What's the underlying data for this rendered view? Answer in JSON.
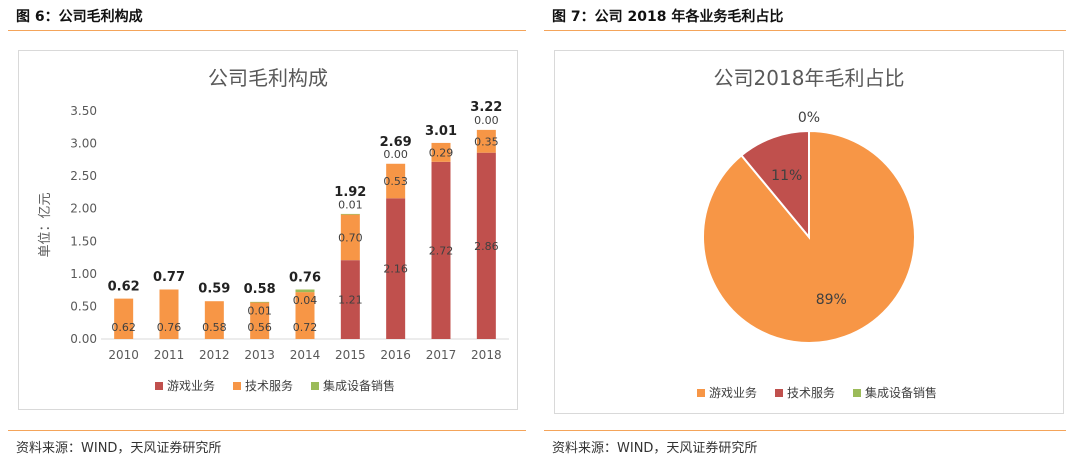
{
  "left": {
    "fig_title": "图 6：公司毛利构成",
    "source": "资料来源：WIND，天风证券研究所"
  },
  "right": {
    "fig_title": "图 7：公司 2018 年各业务毛利占比",
    "source": "资料来源：WIND，天风证券研究所"
  },
  "colors": {
    "game": "#c0504d",
    "tech": "#f79646",
    "equip": "#9bbb59",
    "rule": "#f4a45a"
  },
  "chart_data": [
    {
      "type": "bar",
      "stacked": true,
      "title": "公司毛利构成",
      "ylabel": "单位：亿元",
      "xlabel": "",
      "ylim": [
        0,
        3.5
      ],
      "yticks": [
        "0.00",
        "0.50",
        "1.00",
        "1.50",
        "2.00",
        "2.50",
        "3.00",
        "3.50"
      ],
      "grid": false,
      "legend_position": "bottom",
      "categories": [
        "2010",
        "2011",
        "2012",
        "2013",
        "2014",
        "2015",
        "2016",
        "2017",
        "2018"
      ],
      "series": [
        {
          "name": "游戏业务",
          "color": "#c0504d",
          "values": [
            null,
            null,
            null,
            null,
            null,
            1.21,
            2.16,
            2.72,
            2.86
          ],
          "labels": [
            "",
            "",
            "",
            "",
            "",
            "1.21",
            "2.16",
            "2.72",
            "2.86"
          ]
        },
        {
          "name": "技术服务",
          "color": "#f79646",
          "values": [
            0.62,
            0.76,
            0.58,
            0.56,
            0.72,
            0.7,
            0.53,
            0.29,
            0.35
          ],
          "labels": [
            "0.62",
            "0.76",
            "0.58",
            "0.56",
            "0.72",
            "0.70",
            "0.53",
            "0.29",
            "0.35"
          ]
        },
        {
          "name": "集成设备销售",
          "color": "#9bbb59",
          "values": [
            null,
            null,
            null,
            0.01,
            0.04,
            0.01,
            0.0,
            null,
            0.0
          ],
          "labels": [
            "",
            "",
            "",
            "0.01",
            "0.04",
            "0.01",
            "0.00",
            "",
            "0.00"
          ]
        }
      ],
      "totals": [
        "0.62",
        "0.77",
        "0.59",
        "0.58",
        "0.76",
        "1.92",
        "2.69",
        "3.01",
        "3.22"
      ]
    },
    {
      "type": "pie",
      "title": "公司2018年毛利占比",
      "legend_position": "bottom",
      "slices": [
        {
          "name": "游戏业务",
          "value": 89,
          "label": "89%",
          "color": "#f79646"
        },
        {
          "name": "技术服务",
          "value": 11,
          "label": "11%",
          "color": "#c0504d"
        },
        {
          "name": "集成设备销售",
          "value": 0,
          "label": "0%",
          "color": "#9bbb59"
        }
      ]
    }
  ]
}
